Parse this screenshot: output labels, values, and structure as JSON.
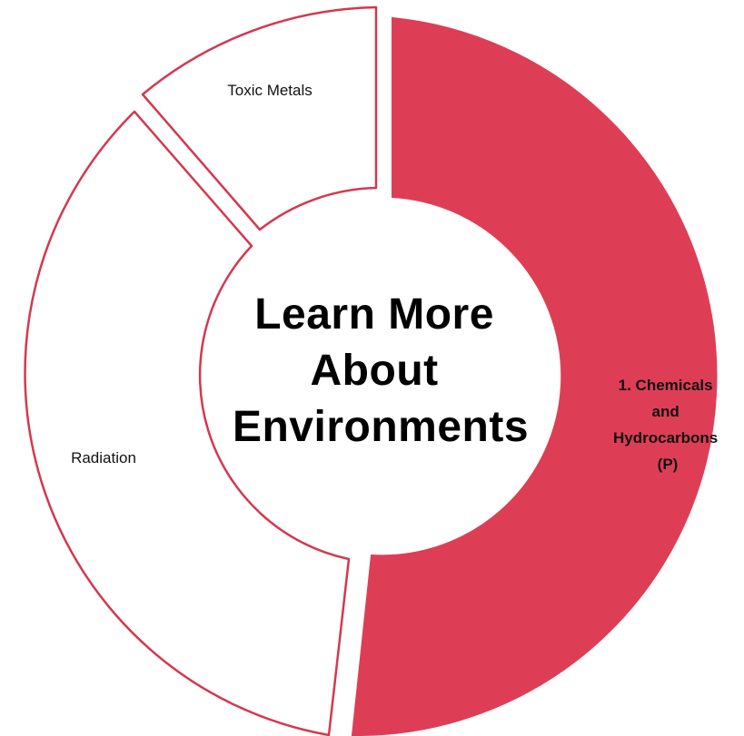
{
  "center": {
    "title_lines": [
      "Learn More",
      "About",
      "Environments"
    ]
  },
  "segments": [
    {
      "id": "chemicals",
      "label_lines": [
        "1. Chemicals",
        "and",
        "Hydrocarbons",
        "(P)"
      ],
      "active": true
    },
    {
      "id": "radiation",
      "label_lines": [
        "Radiation"
      ],
      "active": false
    },
    {
      "id": "toxic-metals",
      "label_lines": [
        "Toxic Metals"
      ],
      "active": false
    }
  ],
  "colors": {
    "accent": "#de3e55",
    "inactive_fill": "#ffffff",
    "stroke": "#d4384f",
    "text": "#111111"
  }
}
